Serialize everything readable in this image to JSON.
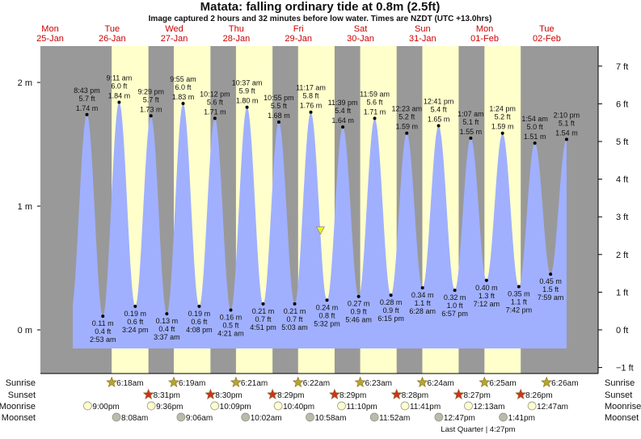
{
  "title": "Matata: falling  ordinary tide at 0.8m (2.5ft)",
  "subtitle": "Image captured 2 hours and 32 minutes before low water. Times are NZDT (UTC +13.0hrs)",
  "colors": {
    "night": "#999999",
    "day": "#ffffcc",
    "water": "#a0b0ff",
    "day_label": "#cc0000",
    "sunrise": "#b3a72c",
    "sunset": "#cc3322",
    "moonrise": "#ffffcc",
    "moonset": "#bbbbaa",
    "marker": "#eeee22"
  },
  "chart_data": {
    "type": "area",
    "title": "Matata: falling  ordinary tide at 0.8m (2.5ft)",
    "left_axis": {
      "unit": "m",
      "ticks": [
        "0 m",
        "1 m",
        "2 m"
      ],
      "values": [
        0,
        1,
        2
      ]
    },
    "right_axis": {
      "unit": "ft",
      "ticks": [
        "-1 ft",
        "0 ft",
        "1 ft",
        "2 ft",
        "3 ft",
        "4 ft",
        "5 ft",
        "6 ft",
        "7 ft"
      ],
      "values": [
        -1,
        0,
        1,
        2,
        3,
        4,
        5,
        6,
        7
      ]
    },
    "ylim_m": [
      -0.3,
      2.3
    ],
    "days": [
      {
        "weekday": "Mon",
        "date": "25-Jan"
      },
      {
        "weekday": "Tue",
        "date": "26-Jan"
      },
      {
        "weekday": "Wed",
        "date": "27-Jan"
      },
      {
        "weekday": "Thu",
        "date": "28-Jan"
      },
      {
        "weekday": "Fri",
        "date": "29-Jan"
      },
      {
        "weekday": "Sat",
        "date": "30-Jan"
      },
      {
        "weekday": "Sun",
        "date": "31-Jan"
      },
      {
        "weekday": "Mon",
        "date": "01-Feb"
      },
      {
        "weekday": "Tue",
        "date": "02-Feb"
      }
    ],
    "current": {
      "day": "29-Jan",
      "time": "3:00 pm",
      "m": 0.8,
      "ft": 2.5
    },
    "tides": [
      {
        "type": "high",
        "day": "25-Jan",
        "time": "8:43 pm",
        "ft": "5.7 ft",
        "m": 1.74
      },
      {
        "type": "low",
        "day": "26-Jan",
        "time": "2:53 am",
        "ft": "0.4 ft",
        "m": 0.11
      },
      {
        "type": "high",
        "day": "26-Jan",
        "time": "9:11 am",
        "ft": "6.0 ft",
        "m": 1.84
      },
      {
        "type": "low",
        "day": "26-Jan",
        "time": "3:24 pm",
        "ft": "0.6 ft",
        "m": 0.19
      },
      {
        "type": "high",
        "day": "26-Jan",
        "time": "9:29 pm",
        "ft": "5.7 ft",
        "m": 1.73
      },
      {
        "type": "low",
        "day": "27-Jan",
        "time": "3:37 am",
        "ft": "0.4 ft",
        "m": 0.13
      },
      {
        "type": "high",
        "day": "27-Jan",
        "time": "9:55 am",
        "ft": "6.0 ft",
        "m": 1.83
      },
      {
        "type": "low",
        "day": "27-Jan",
        "time": "4:08 pm",
        "ft": "0.6 ft",
        "m": 0.19
      },
      {
        "type": "high",
        "day": "27-Jan",
        "time": "10:12 pm",
        "ft": "5.6 ft",
        "m": 1.71
      },
      {
        "type": "low",
        "day": "28-Jan",
        "time": "4:21 am",
        "ft": "0.5 ft",
        "m": 0.16
      },
      {
        "type": "high",
        "day": "28-Jan",
        "time": "10:37 am",
        "ft": "5.9 ft",
        "m": 1.8
      },
      {
        "type": "low",
        "day": "28-Jan",
        "time": "4:51 pm",
        "ft": "0.7 ft",
        "m": 0.21
      },
      {
        "type": "high",
        "day": "28-Jan",
        "time": "10:55 pm",
        "ft": "5.5 ft",
        "m": 1.68
      },
      {
        "type": "low",
        "day": "29-Jan",
        "time": "5:03 am",
        "ft": "0.7 ft",
        "m": 0.21
      },
      {
        "type": "high",
        "day": "29-Jan",
        "time": "11:17 am",
        "ft": "5.8 ft",
        "m": 1.76
      },
      {
        "type": "low",
        "day": "29-Jan",
        "time": "5:32 pm",
        "ft": "0.8 ft",
        "m": 0.24
      },
      {
        "type": "high",
        "day": "29-Jan",
        "time": "11:39 pm",
        "ft": "5.4 ft",
        "m": 1.64
      },
      {
        "type": "low",
        "day": "30-Jan",
        "time": "5:46 am",
        "ft": "0.9 ft",
        "m": 0.27
      },
      {
        "type": "high",
        "day": "30-Jan",
        "time": "11:59 am",
        "ft": "5.6 ft",
        "m": 1.71
      },
      {
        "type": "low",
        "day": "30-Jan",
        "time": "6:15 pm",
        "ft": "0.9 ft",
        "m": 0.28
      },
      {
        "type": "high",
        "day": "31-Jan",
        "time": "12:23 am",
        "ft": "5.2 ft",
        "m": 1.59
      },
      {
        "type": "low",
        "day": "31-Jan",
        "time": "6:28 am",
        "ft": "1.1 ft",
        "m": 0.34
      },
      {
        "type": "high",
        "day": "31-Jan",
        "time": "12:41 pm",
        "ft": "5.4 ft",
        "m": 1.65
      },
      {
        "type": "low",
        "day": "31-Jan",
        "time": "6:57 pm",
        "ft": "1.0 ft",
        "m": 0.32
      },
      {
        "type": "high",
        "day": "01-Feb",
        "time": "1:07 am",
        "ft": "5.1 ft",
        "m": 1.55
      },
      {
        "type": "low",
        "day": "01-Feb",
        "time": "7:12 am",
        "ft": "1.3 ft",
        "m": 0.4
      },
      {
        "type": "high",
        "day": "01-Feb",
        "time": "1:24 pm",
        "ft": "5.2 ft",
        "m": 1.59
      },
      {
        "type": "low",
        "day": "01-Feb",
        "time": "7:42 pm",
        "ft": "1.1 ft",
        "m": 0.35
      },
      {
        "type": "high",
        "day": "02-Feb",
        "time": "1:54 am",
        "ft": "5.0 ft",
        "m": 1.51
      },
      {
        "type": "low",
        "day": "02-Feb",
        "time": "7:59 am",
        "ft": "1.5 ft",
        "m": 0.45
      },
      {
        "type": "high",
        "day": "02-Feb",
        "time": "2:10 pm",
        "ft": "5.1 ft",
        "m": 1.54
      }
    ],
    "sun_moon": {
      "labels": {
        "sunrise": "Sunrise",
        "sunset": "Sunset",
        "moonrise": "Moonrise",
        "moonset": "Moonset"
      },
      "sunrise": [
        {
          "day": "26-Jan",
          "time": "6:18am"
        },
        {
          "day": "27-Jan",
          "time": "6:19am"
        },
        {
          "day": "28-Jan",
          "time": "6:21am"
        },
        {
          "day": "29-Jan",
          "time": "6:22am"
        },
        {
          "day": "30-Jan",
          "time": "6:23am"
        },
        {
          "day": "31-Jan",
          "time": "6:24am"
        },
        {
          "day": "01-Feb",
          "time": "6:25am"
        },
        {
          "day": "02-Feb",
          "time": "6:26am"
        }
      ],
      "sunset": [
        {
          "day": "26-Jan",
          "time": "8:31pm"
        },
        {
          "day": "27-Jan",
          "time": "8:30pm"
        },
        {
          "day": "28-Jan",
          "time": "8:29pm"
        },
        {
          "day": "29-Jan",
          "time": "8:29pm"
        },
        {
          "day": "30-Jan",
          "time": "8:28pm"
        },
        {
          "day": "31-Jan",
          "time": "8:27pm"
        },
        {
          "day": "01-Feb",
          "time": "8:26pm"
        }
      ],
      "moonrise": [
        {
          "day": "25-Jan",
          "time": "9:00pm"
        },
        {
          "day": "26-Jan",
          "time": "9:36pm"
        },
        {
          "day": "27-Jan",
          "time": "10:09pm"
        },
        {
          "day": "28-Jan",
          "time": "10:40pm"
        },
        {
          "day": "29-Jan",
          "time": "11:10pm"
        },
        {
          "day": "30-Jan",
          "time": "11:41pm"
        },
        {
          "day": "01-Feb",
          "time": "12:13am"
        },
        {
          "day": "02-Feb",
          "time": "12:47am"
        }
      ],
      "moonset": [
        {
          "day": "26-Jan",
          "time": "8:08am"
        },
        {
          "day": "27-Jan",
          "time": "9:06am"
        },
        {
          "day": "28-Jan",
          "time": "10:02am"
        },
        {
          "day": "29-Jan",
          "time": "10:58am"
        },
        {
          "day": "30-Jan",
          "time": "11:52am"
        },
        {
          "day": "31-Jan",
          "time": "12:47pm"
        },
        {
          "day": "01-Feb",
          "time": "1:41pm"
        }
      ],
      "moon_phase": {
        "day": "01-Feb",
        "time": "4:27pm",
        "label": "Last Quarter | 4:27pm"
      }
    }
  }
}
